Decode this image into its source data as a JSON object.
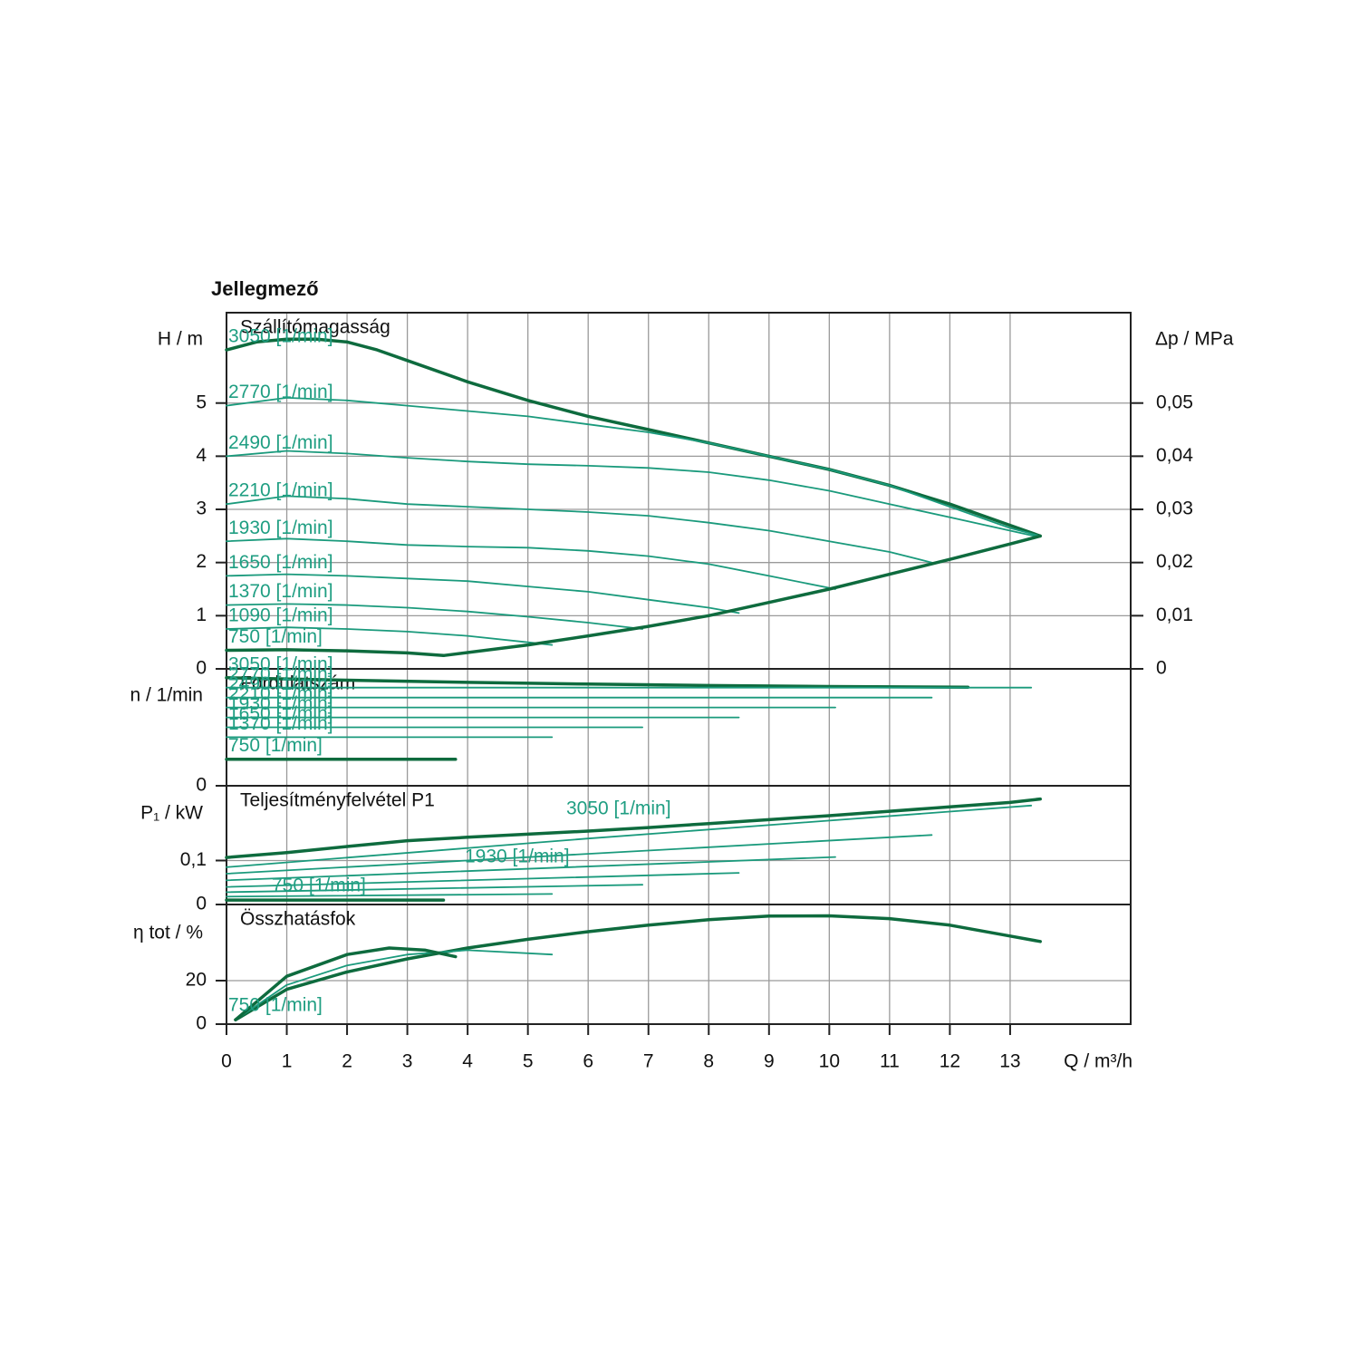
{
  "title": "Jellegmező",
  "label_color": "#1f9e82",
  "chart_data": [
    {
      "type": "line",
      "title": "Szállítómagasság",
      "y_label": "H / m",
      "y2_label": "Δp / MPa",
      "xlim": [
        0,
        15
      ],
      "ylim": [
        0,
        6.7
      ],
      "yticks": [
        0,
        1,
        2,
        3,
        4,
        5
      ],
      "y2lim": [
        0,
        0.067
      ],
      "y2ticks": [
        0,
        {
          "value": 0.01,
          "label": "0,01"
        },
        {
          "value": 0.02,
          "label": "0,02"
        },
        {
          "value": 0.03,
          "label": "0,03"
        },
        {
          "value": 0.04,
          "label": "0,04"
        },
        {
          "value": 0.05,
          "label": "0,05"
        }
      ],
      "grid": true,
      "series": [
        {
          "name": "3050 [1/min]",
          "color": "#0e6b3e",
          "width": 3.5,
          "x": [
            0,
            0.5,
            1,
            1.5,
            2,
            2.5,
            3,
            4,
            5,
            6,
            7,
            8,
            9,
            10,
            11,
            12,
            13,
            13.5
          ],
          "values": [
            6.0,
            6.15,
            6.2,
            6.2,
            6.15,
            6.0,
            5.8,
            5.4,
            5.05,
            4.75,
            4.5,
            4.25,
            4.0,
            3.75,
            3.45,
            3.1,
            2.7,
            2.5
          ]
        },
        {
          "name": "2770 [1/min]",
          "color": "#1a9a7c",
          "width": 1.8,
          "x": [
            0,
            1,
            2,
            3,
            4,
            5,
            6,
            7,
            8,
            9,
            10,
            11,
            12,
            13,
            13.5
          ],
          "values": [
            4.95,
            5.1,
            5.05,
            4.95,
            4.85,
            4.75,
            4.6,
            4.45,
            4.25,
            4.0,
            3.75,
            3.45,
            3.05,
            2.65,
            2.5
          ]
        },
        {
          "name": "2490 [1/min]",
          "color": "#1a9a7c",
          "width": 1.8,
          "x": [
            0,
            1,
            2,
            3,
            4,
            5,
            6,
            7,
            8,
            9,
            10,
            11,
            12,
            13,
            13.4
          ],
          "values": [
            4.0,
            4.1,
            4.05,
            3.97,
            3.9,
            3.85,
            3.82,
            3.78,
            3.7,
            3.55,
            3.35,
            3.1,
            2.85,
            2.6,
            2.5
          ]
        },
        {
          "name": "2210 [1/min]",
          "color": "#1a9a7c",
          "width": 1.8,
          "x": [
            0,
            1,
            2,
            3,
            4,
            5,
            6,
            7,
            8,
            9,
            10,
            11,
            11.7
          ],
          "values": [
            3.1,
            3.25,
            3.2,
            3.1,
            3.05,
            3.0,
            2.95,
            2.88,
            2.75,
            2.6,
            2.4,
            2.2,
            2.0
          ]
        },
        {
          "name": "1930 [1/min]",
          "color": "#1a9a7c",
          "width": 1.8,
          "x": [
            0,
            1,
            2,
            3,
            4,
            5,
            6,
            7,
            8,
            9,
            10.1
          ],
          "values": [
            2.4,
            2.45,
            2.4,
            2.33,
            2.3,
            2.28,
            2.22,
            2.12,
            1.97,
            1.75,
            1.5
          ]
        },
        {
          "name": "1650 [1/min]",
          "color": "#1a9a7c",
          "width": 1.8,
          "x": [
            0,
            1,
            2,
            3,
            4,
            5,
            6,
            7,
            8,
            8.5
          ],
          "values": [
            1.75,
            1.78,
            1.75,
            1.7,
            1.65,
            1.55,
            1.45,
            1.3,
            1.15,
            1.05
          ]
        },
        {
          "name": "1370 [1/min]",
          "color": "#1a9a7c",
          "width": 1.8,
          "x": [
            0,
            1,
            2,
            3,
            4,
            5,
            6,
            6.9
          ],
          "values": [
            1.2,
            1.22,
            1.2,
            1.15,
            1.08,
            0.98,
            0.87,
            0.75
          ]
        },
        {
          "name": "1090 [1/min]",
          "color": "#1a9a7c",
          "width": 1.8,
          "x": [
            0,
            1,
            2,
            3,
            4,
            5,
            5.4
          ],
          "values": [
            0.75,
            0.78,
            0.75,
            0.7,
            0.62,
            0.5,
            0.45
          ]
        },
        {
          "name": "750 [1/min]",
          "color": "#0e6b3e",
          "width": 3.5,
          "x": [
            0,
            1,
            2,
            3,
            3.6
          ],
          "values": [
            0.35,
            0.36,
            0.34,
            0.3,
            0.25
          ]
        },
        {
          "color": "#0e6b3e",
          "width": 3.5,
          "x": [
            3.6,
            5,
            6,
            7,
            8,
            9,
            10,
            11,
            12,
            13,
            13.5
          ],
          "values": [
            0.25,
            0.45,
            0.62,
            0.8,
            1.0,
            1.25,
            1.5,
            1.78,
            2.06,
            2.35,
            2.5
          ]
        }
      ]
    },
    {
      "type": "line",
      "title": "Fordulatszám",
      "y_label": "n / 1/min",
      "xlim": [
        0,
        15
      ],
      "ylim": [
        0,
        3300
      ],
      "yticks": [
        0
      ],
      "grid": true,
      "series": [
        {
          "name": "3050 [1/min]",
          "color": "#0e6b3e",
          "width": 3.5,
          "x": [
            0,
            2,
            4,
            6,
            8,
            10,
            12.3
          ],
          "values": [
            3050,
            2980,
            2920,
            2870,
            2830,
            2800,
            2780
          ]
        },
        {
          "name": "2770 [1/min]",
          "color": "#1a9a7c",
          "width": 1.8,
          "x": [
            0,
            13.35
          ],
          "values": [
            2770,
            2770
          ]
        },
        {
          "name": "2490 [1/min]",
          "color": "#1a9a7c",
          "width": 1.8,
          "x": [
            0,
            11.7
          ],
          "values": [
            2490,
            2490
          ]
        },
        {
          "name": "2210 [1/min]",
          "color": "#1a9a7c",
          "width": 1.8,
          "x": [
            0,
            10.1
          ],
          "values": [
            2210,
            2210
          ]
        },
        {
          "name": "1930 [1/min]",
          "color": "#1a9a7c",
          "width": 1.8,
          "x": [
            0,
            8.5
          ],
          "values": [
            1930,
            1930
          ]
        },
        {
          "name": "1650 [1/min]",
          "color": "#1a9a7c",
          "width": 1.8,
          "x": [
            0,
            6.9
          ],
          "values": [
            1650,
            1650
          ]
        },
        {
          "name": "1370 [1/min]",
          "color": "#1a9a7c",
          "width": 1.8,
          "x": [
            0,
            5.4
          ],
          "values": [
            1370,
            1370
          ]
        },
        {
          "name": "750 [1/min]",
          "color": "#0e6b3e",
          "width": 3.5,
          "x": [
            0,
            3.8
          ],
          "values": [
            750,
            750
          ]
        }
      ]
    },
    {
      "type": "line",
      "title": "Teljesítményfelvétel P1",
      "y_label": "P₁ / kW",
      "xlim": [
        0,
        15
      ],
      "ylim": [
        0,
        0.27
      ],
      "yticks": [
        0,
        {
          "value": 0.1,
          "label": "0,1"
        }
      ],
      "grid": true,
      "series": [
        {
          "name": "3050 [1/min]",
          "color": "#0e6b3e",
          "width": 3.5,
          "x": [
            0,
            1,
            2,
            3,
            4,
            5,
            6,
            7,
            8,
            9,
            10,
            11,
            12,
            13,
            13.5
          ],
          "values": [
            0.107,
            0.118,
            0.132,
            0.145,
            0.153,
            0.16,
            0.167,
            0.175,
            0.184,
            0.193,
            0.202,
            0.212,
            0.222,
            0.232,
            0.24
          ]
        },
        {
          "color": "#1a9a7c",
          "width": 1.8,
          "x": [
            0,
            6,
            13.35
          ],
          "values": [
            0.085,
            0.15,
            0.225
          ]
        },
        {
          "color": "#1a9a7c",
          "width": 1.8,
          "x": [
            0,
            11.7
          ],
          "values": [
            0.07,
            0.158
          ]
        },
        {
          "color": "#1a9a7c",
          "width": 1.8,
          "x": [
            0,
            10.1
          ],
          "values": [
            0.055,
            0.108
          ]
        },
        {
          "name": "1930 [1/min]",
          "color": "#1a9a7c",
          "width": 1.8,
          "x": [
            0,
            8.5
          ],
          "values": [
            0.04,
            0.072
          ]
        },
        {
          "color": "#1a9a7c",
          "width": 1.8,
          "x": [
            0,
            6.9
          ],
          "values": [
            0.028,
            0.045
          ]
        },
        {
          "color": "#1a9a7c",
          "width": 1.8,
          "x": [
            0,
            5.4
          ],
          "values": [
            0.018,
            0.024
          ]
        },
        {
          "name": "750 [1/min]",
          "color": "#0e6b3e",
          "width": 3.5,
          "x": [
            0,
            3.6
          ],
          "values": [
            0.01,
            0.01
          ]
        }
      ]
    },
    {
      "type": "line",
      "title": "Összhatásfok",
      "y_label": "η tot / %",
      "x_label": "Q / m³/h",
      "xlim": [
        0,
        15
      ],
      "ylim": [
        0,
        55
      ],
      "yticks": [
        0,
        20
      ],
      "xticks": [
        0,
        1,
        2,
        3,
        4,
        5,
        6,
        7,
        8,
        9,
        10,
        11,
        12,
        13
      ],
      "grid": true,
      "series": [
        {
          "color": "#0e6b3e",
          "width": 3.5,
          "x": [
            0.15,
            1,
            2,
            3,
            4,
            5,
            6,
            7,
            8,
            9,
            10,
            11,
            12,
            13,
            13.5
          ],
          "values": [
            2,
            16,
            24,
            30,
            35,
            39,
            42.5,
            45.5,
            48,
            49.7,
            49.8,
            48.5,
            45.5,
            40.5,
            38
          ]
        },
        {
          "color": "#1a9a7c",
          "width": 1.8,
          "x": [
            0.15,
            1,
            2,
            3,
            4,
            5.4
          ],
          "values": [
            2,
            18,
            27,
            32,
            34,
            32
          ]
        },
        {
          "name": "750 [1/min]",
          "color": "#0e6b3e",
          "width": 3.5,
          "x": [
            0.15,
            1,
            2,
            2.7,
            3.3,
            3.8
          ],
          "values": [
            2,
            22,
            32,
            35,
            34,
            31
          ]
        }
      ]
    }
  ]
}
